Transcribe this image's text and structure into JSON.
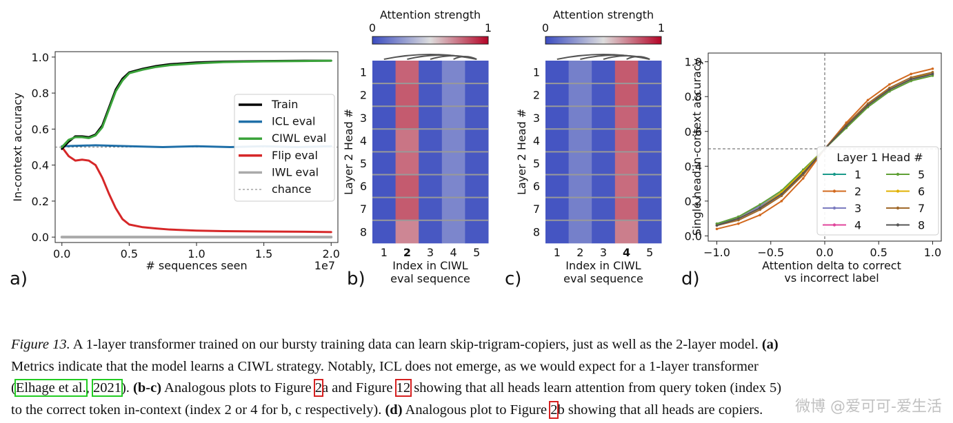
{
  "panel_labels": [
    "a)",
    "b)",
    "c)",
    "d)"
  ],
  "chart_data": [
    {
      "panel": "a",
      "type": "line",
      "xlabel": "# sequences seen",
      "ylabel": "In-context accuracy",
      "x_offset_label": "1e7",
      "xlim": [
        -0.05,
        2.05
      ],
      "ylim": [
        -0.03,
        1.03
      ],
      "xticks": [
        0.0,
        0.5,
        1.0,
        1.5,
        2.0
      ],
      "xtick_labels": [
        "0.0",
        "0.5",
        "1.0",
        "1.5",
        "2.0"
      ],
      "yticks": [
        0.0,
        0.2,
        0.4,
        0.6,
        0.8,
        1.0
      ],
      "ytick_labels": [
        "0.0",
        "0.2",
        "0.4",
        "0.6",
        "0.8",
        "1.0"
      ],
      "legend_position": "center-right",
      "reference_line": {
        "name": "chance",
        "y": 0.5
      },
      "series": [
        {
          "name": "Train",
          "color": "#000000",
          "x": [
            0.0,
            0.05,
            0.1,
            0.15,
            0.2,
            0.25,
            0.3,
            0.35,
            0.4,
            0.45,
            0.5,
            0.6,
            0.7,
            0.8,
            1.0,
            1.2,
            1.5,
            1.8,
            2.0
          ],
          "y": [
            0.49,
            0.53,
            0.56,
            0.56,
            0.555,
            0.57,
            0.62,
            0.72,
            0.82,
            0.88,
            0.915,
            0.935,
            0.95,
            0.96,
            0.97,
            0.975,
            0.978,
            0.98,
            0.98
          ]
        },
        {
          "name": "ICL eval",
          "color": "#1f6fa8",
          "x": [
            0.0,
            0.25,
            0.5,
            0.75,
            1.0,
            1.25,
            1.5,
            1.75,
            2.0
          ],
          "y": [
            0.505,
            0.51,
            0.505,
            0.5,
            0.505,
            0.5,
            0.505,
            0.5,
            0.505
          ]
        },
        {
          "name": "CIWL eval",
          "color": "#3aa33a",
          "x": [
            0.0,
            0.05,
            0.1,
            0.15,
            0.2,
            0.25,
            0.3,
            0.35,
            0.4,
            0.45,
            0.5,
            0.6,
            0.7,
            0.8,
            1.0,
            1.2,
            1.5,
            1.8,
            2.0
          ],
          "y": [
            0.5,
            0.54,
            0.555,
            0.555,
            0.55,
            0.565,
            0.61,
            0.71,
            0.81,
            0.87,
            0.91,
            0.93,
            0.945,
            0.955,
            0.965,
            0.972,
            0.976,
            0.978,
            0.98
          ]
        },
        {
          "name": "Flip eval",
          "color": "#d62728",
          "x": [
            0.0,
            0.05,
            0.1,
            0.15,
            0.2,
            0.25,
            0.3,
            0.35,
            0.4,
            0.45,
            0.5,
            0.6,
            0.7,
            0.8,
            1.0,
            1.2,
            1.5,
            1.8,
            2.0
          ],
          "y": [
            0.5,
            0.45,
            0.425,
            0.43,
            0.425,
            0.4,
            0.33,
            0.24,
            0.16,
            0.1,
            0.07,
            0.055,
            0.048,
            0.042,
            0.036,
            0.033,
            0.031,
            0.03,
            0.028
          ]
        },
        {
          "name": "IWL eval",
          "color": "#aaaaaa",
          "x": [
            0.0,
            2.0
          ],
          "y": [
            0.0,
            0.0
          ]
        }
      ],
      "legend_entries": [
        "Train",
        "ICL eval",
        "CIWL eval",
        "Flip eval",
        "IWL eval",
        "chance"
      ]
    },
    {
      "panel": "b",
      "type": "heatmap",
      "title": "Attention strength",
      "colorbar_ticks": [
        "0",
        "1"
      ],
      "xlabel": "Index in CIWL eval sequence",
      "ylabel": "Layer 2 Head #",
      "x_categories": [
        "1",
        "2",
        "3",
        "4",
        "5"
      ],
      "y_categories": [
        "1",
        "2",
        "3",
        "4",
        "5",
        "6",
        "7",
        "8"
      ],
      "highlighted_column": "2",
      "values": [
        [
          0.03,
          0.78,
          0.04,
          0.2,
          0.04
        ],
        [
          0.03,
          0.8,
          0.04,
          0.2,
          0.04
        ],
        [
          0.03,
          0.8,
          0.04,
          0.2,
          0.04
        ],
        [
          0.03,
          0.74,
          0.04,
          0.2,
          0.04
        ],
        [
          0.03,
          0.76,
          0.04,
          0.2,
          0.04
        ],
        [
          0.03,
          0.8,
          0.04,
          0.2,
          0.04
        ],
        [
          0.03,
          0.8,
          0.04,
          0.2,
          0.04
        ],
        [
          0.03,
          0.7,
          0.04,
          0.2,
          0.04
        ]
      ]
    },
    {
      "panel": "c",
      "type": "heatmap",
      "title": "Attention strength",
      "colorbar_ticks": [
        "0",
        "1"
      ],
      "xlabel": "Index in CIWL eval sequence",
      "ylabel": "Layer 2 Head #",
      "x_categories": [
        "1",
        "2",
        "3",
        "4",
        "5"
      ],
      "y_categories": [
        "1",
        "2",
        "3",
        "4",
        "5",
        "6",
        "7",
        "8"
      ],
      "highlighted_column": "4",
      "values": [
        [
          0.03,
          0.18,
          0.04,
          0.8,
          0.04
        ],
        [
          0.03,
          0.18,
          0.04,
          0.8,
          0.04
        ],
        [
          0.03,
          0.18,
          0.04,
          0.78,
          0.04
        ],
        [
          0.03,
          0.18,
          0.04,
          0.78,
          0.04
        ],
        [
          0.03,
          0.18,
          0.04,
          0.76,
          0.04
        ],
        [
          0.03,
          0.18,
          0.04,
          0.76,
          0.04
        ],
        [
          0.03,
          0.18,
          0.04,
          0.78,
          0.04
        ],
        [
          0.03,
          0.18,
          0.04,
          0.72,
          0.04
        ]
      ]
    },
    {
      "panel": "d",
      "type": "line",
      "xlabel": "Attention delta to correct vs incorrect label",
      "ylabel": "Single head in-context accuracy",
      "xlim": [
        -1.08,
        1.08
      ],
      "ylim": [
        -0.03,
        1.05
      ],
      "xticks": [
        -1.0,
        -0.5,
        0.0,
        0.5,
        1.0
      ],
      "xtick_labels": [
        "−1.0",
        "−0.5",
        "0.0",
        "0.5",
        "1.0"
      ],
      "yticks": [
        0.0,
        0.2,
        0.4,
        0.6,
        0.8,
        1.0
      ],
      "ytick_labels": [
        "0.0",
        "0.2",
        "0.4",
        "0.6",
        "0.8",
        "1.0"
      ],
      "reference_lines": {
        "x": 0.0,
        "y": 0.5
      },
      "legend_title": "Layer 1 Head #",
      "legend_position": "lower-right",
      "x": [
        -1.0,
        -0.8,
        -0.6,
        -0.4,
        -0.2,
        0.0,
        0.2,
        0.4,
        0.6,
        0.8,
        1.0
      ],
      "series": [
        {
          "name": "1",
          "color": "#1a9a8a",
          "values": [
            0.07,
            0.1,
            0.16,
            0.24,
            0.36,
            0.5,
            0.63,
            0.75,
            0.84,
            0.9,
            0.93
          ]
        },
        {
          "name": "2",
          "color": "#d2691e",
          "values": [
            0.04,
            0.07,
            0.12,
            0.2,
            0.33,
            0.5,
            0.65,
            0.78,
            0.87,
            0.93,
            0.96
          ]
        },
        {
          "name": "3",
          "color": "#7b7bbf",
          "values": [
            0.07,
            0.11,
            0.17,
            0.25,
            0.37,
            0.5,
            0.63,
            0.74,
            0.83,
            0.89,
            0.93
          ]
        },
        {
          "name": "4",
          "color": "#e0449b",
          "values": [
            0.06,
            0.1,
            0.16,
            0.24,
            0.36,
            0.5,
            0.63,
            0.75,
            0.84,
            0.9,
            0.93
          ]
        },
        {
          "name": "5",
          "color": "#5fa035",
          "values": [
            0.07,
            0.11,
            0.18,
            0.26,
            0.38,
            0.5,
            0.62,
            0.74,
            0.83,
            0.89,
            0.92
          ]
        },
        {
          "name": "6",
          "color": "#e0b000",
          "values": [
            0.06,
            0.1,
            0.16,
            0.25,
            0.37,
            0.5,
            0.63,
            0.75,
            0.84,
            0.9,
            0.94
          ]
        },
        {
          "name": "7",
          "color": "#a0692a",
          "values": [
            0.06,
            0.09,
            0.15,
            0.23,
            0.35,
            0.5,
            0.64,
            0.76,
            0.85,
            0.91,
            0.94
          ]
        },
        {
          "name": "8",
          "color": "#555555",
          "values": [
            0.06,
            0.1,
            0.16,
            0.24,
            0.36,
            0.5,
            0.63,
            0.75,
            0.84,
            0.9,
            0.93
          ]
        }
      ]
    }
  ],
  "caption": {
    "fig_label": "Figure 13.",
    "line1": " A 1-layer transformer trained on our bursty training data can learn skip-trigram-copiers, just as well as the 2-layer model. ",
    "line1_bold": "(a)",
    "line2": "Metrics indicate that the model learns a CIWL strategy. Notably, ICL does not emerge, as we would expect for a 1-layer transformer",
    "line3_open": "(",
    "line3_cite1": "Elhage et al.",
    "line3_sep": ",",
    "line3_cite2": "2021",
    "line3_close": "). ",
    "line3_bold": "(b-c)",
    "line3_a": " Analogous plots to Figure ",
    "line3_ref1": "2",
    "line3_b": "a and Figure ",
    "line3_ref2": "12",
    "line3_c": " showing that all heads learn attention from query token (index 5)",
    "line4_a": "to the correct token in-context (index 2 or 4 for b, c respectively). ",
    "line4_bold": "(d)",
    "line4_b": " Analogous plot to Figure ",
    "line4_ref": "2",
    "line4_c": "b showing that all heads are copiers."
  },
  "watermark": "微博 @爱可可-爱生活",
  "colormap": {
    "low": "#3b4cc0",
    "mid": "#dddddd",
    "high": "#b40426"
  }
}
